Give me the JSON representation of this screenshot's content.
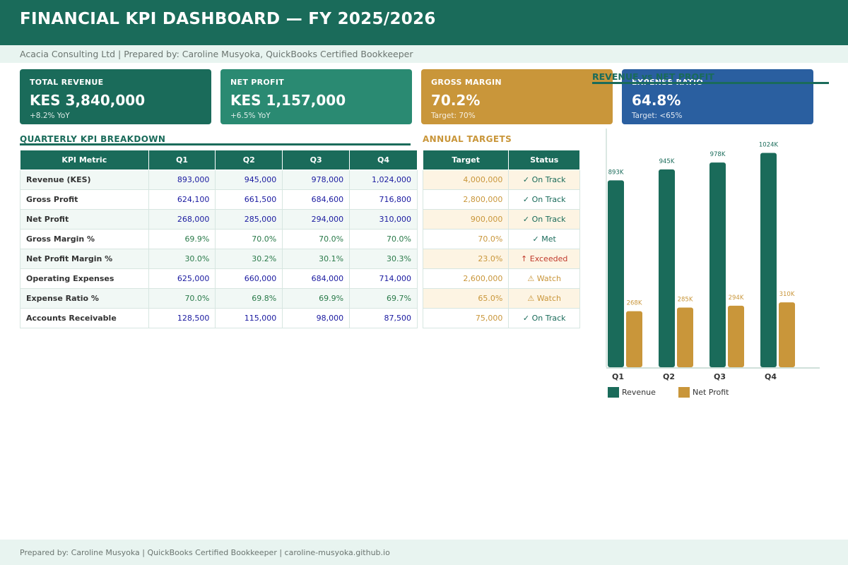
{
  "header": {
    "title": "FINANCIAL KPI DASHBOARD — FY 2025/2026"
  },
  "subheader": {
    "text": "Acacia Consulting Ltd  |  Prepared by: Caroline Musyoka, QuickBooks Certified Bookkeeper"
  },
  "cards": [
    {
      "label": "TOTAL REVENUE",
      "value": "KES 3,840,000",
      "sub": "+8.2% YoY",
      "color": "#1a6b5a"
    },
    {
      "label": "NET PROFIT",
      "value": "KES 1,157,000",
      "sub": "+6.5% YoY",
      "color": "#2a8a72"
    },
    {
      "label": "GROSS MARGIN",
      "value": "70.2%",
      "sub": "Target: 70%",
      "color": "#c9963a"
    },
    {
      "label": "EXPENSE RATIO",
      "value": "64.8%",
      "sub": "Target: <65%",
      "color": "#2a5fa0"
    }
  ],
  "quarterly": {
    "title": "QUARTERLY KPI BREAKDOWN",
    "headers": [
      "KPI Metric",
      "Q1",
      "Q2",
      "Q3",
      "Q4"
    ],
    "rows": [
      {
        "metric": "Revenue (KES)",
        "values": [
          "893,000",
          "945,000",
          "978,000",
          "1,024,000"
        ],
        "kind": "num"
      },
      {
        "metric": "Gross Profit",
        "values": [
          "624,100",
          "661,500",
          "684,600",
          "716,800"
        ],
        "kind": "num"
      },
      {
        "metric": "Net Profit",
        "values": [
          "268,000",
          "285,000",
          "294,000",
          "310,000"
        ],
        "kind": "num"
      },
      {
        "metric": "Gross Margin %",
        "values": [
          "69.9%",
          "70.0%",
          "70.0%",
          "70.0%"
        ],
        "kind": "pct"
      },
      {
        "metric": "Net Profit Margin %",
        "values": [
          "30.0%",
          "30.2%",
          "30.1%",
          "30.3%"
        ],
        "kind": "pct"
      },
      {
        "metric": "Operating Expenses",
        "values": [
          "625,000",
          "660,000",
          "684,000",
          "714,000"
        ],
        "kind": "num"
      },
      {
        "metric": "Expense Ratio %",
        "values": [
          "70.0%",
          "69.8%",
          "69.9%",
          "69.7%"
        ],
        "kind": "pct"
      },
      {
        "metric": "Accounts Receivable",
        "values": [
          "128,500",
          "115,000",
          "98,000",
          "87,500"
        ],
        "kind": "num"
      }
    ]
  },
  "targets": {
    "title": "ANNUAL TARGETS",
    "headers": [
      "Target",
      "Status"
    ],
    "rows": [
      {
        "target": "4,000,000",
        "status": "✓ On Track",
        "status_color": "#1a6b5a"
      },
      {
        "target": "2,800,000",
        "status": "✓ On Track",
        "status_color": "#1a6b5a"
      },
      {
        "target": "900,000",
        "status": "✓ On Track",
        "status_color": "#1a6b5a"
      },
      {
        "target": "70.0%",
        "status": "✓ Met",
        "status_color": "#1a6b5a"
      },
      {
        "target": "23.0%",
        "status": "↑ Exceeded",
        "status_color": "#c0392b"
      },
      {
        "target": "2,600,000",
        "status": "⚠ Watch",
        "status_color": "#c9963a"
      },
      {
        "target": "65.0%",
        "status": "⚠ Watch",
        "status_color": "#c9963a"
      },
      {
        "target": "75,000",
        "status": "✓ On Track",
        "status_color": "#1a6b5a"
      }
    ]
  },
  "chart_data": {
    "type": "bar",
    "title": "REVENUE vs NET PROFIT",
    "categories": [
      "Q1",
      "Q2",
      "Q3",
      "Q4"
    ],
    "series": [
      {
        "name": "Revenue",
        "values": [
          893,
          945,
          978,
          1024
        ],
        "labels": [
          "893K",
          "945K",
          "978K",
          "1024K"
        ],
        "color": "#1a6b5a"
      },
      {
        "name": "Net Profit",
        "values": [
          268,
          285,
          294,
          310
        ],
        "labels": [
          "268K",
          "285K",
          "294K",
          "310K"
        ],
        "color": "#c9963a"
      }
    ],
    "ylim": [
      0,
      1100
    ],
    "grid": false,
    "legend": "bottom-left"
  },
  "footer": {
    "text": "Prepared by: Caroline Musyoka  |  QuickBooks Certified Bookkeeper  |  caroline-musyoka.github.io"
  }
}
